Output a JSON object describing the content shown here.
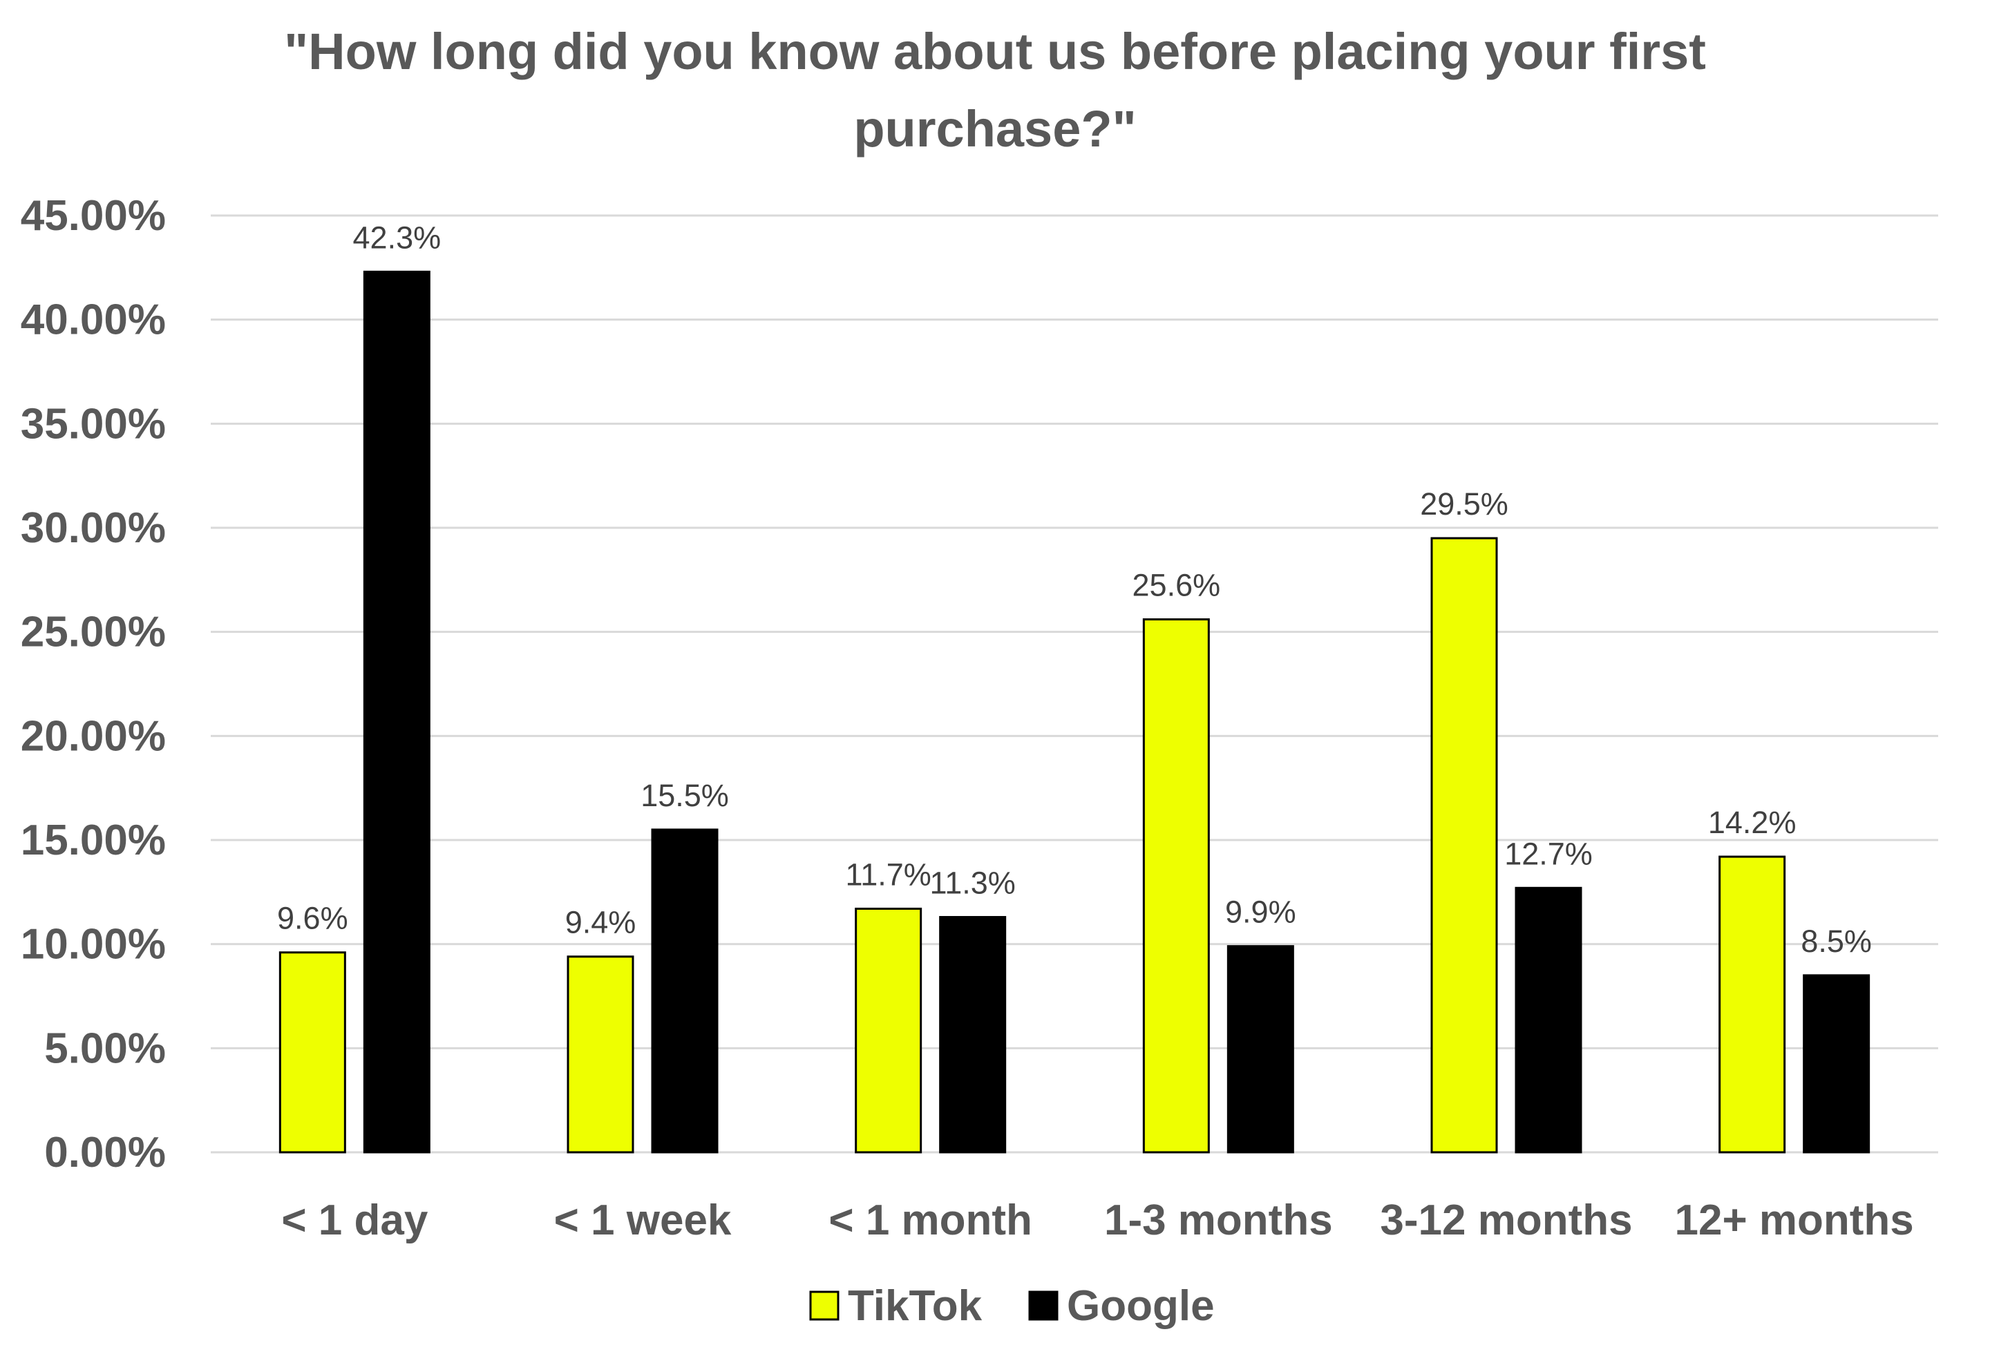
{
  "chart_data": {
    "type": "bar",
    "title_lines": [
      "\"How long did you know about us before placing your first",
      "purchase?\""
    ],
    "categories": [
      "< 1 day",
      "< 1 week",
      "< 1 month",
      "1-3 months",
      "3-12 months",
      "12+ months"
    ],
    "series": [
      {
        "name": "TikTok",
        "color": "#EEFF00",
        "values": [
          9.6,
          9.4,
          11.7,
          25.6,
          29.5,
          14.2
        ],
        "labels": [
          "9.6%",
          "9.4%",
          "11.7%",
          "25.6%",
          "29.5%",
          "14.2%"
        ]
      },
      {
        "name": "Google",
        "color": "#000000",
        "values": [
          42.3,
          15.5,
          11.3,
          9.9,
          12.7,
          8.5
        ],
        "labels": [
          "42.3%",
          "15.5%",
          "11.3%",
          "9.9%",
          "12.7%",
          "8.5%"
        ]
      }
    ],
    "yticks": [
      0,
      5,
      10,
      15,
      20,
      25,
      30,
      35,
      40,
      45
    ],
    "ytick_labels": [
      "0.00%",
      "5.00%",
      "10.00%",
      "15.00%",
      "20.00%",
      "25.00%",
      "30.00%",
      "35.00%",
      "40.00%",
      "45.00%"
    ],
    "ylim": [
      0,
      45
    ],
    "xlabel": "",
    "ylabel": "",
    "grid": true,
    "legend_position": "bottom"
  }
}
